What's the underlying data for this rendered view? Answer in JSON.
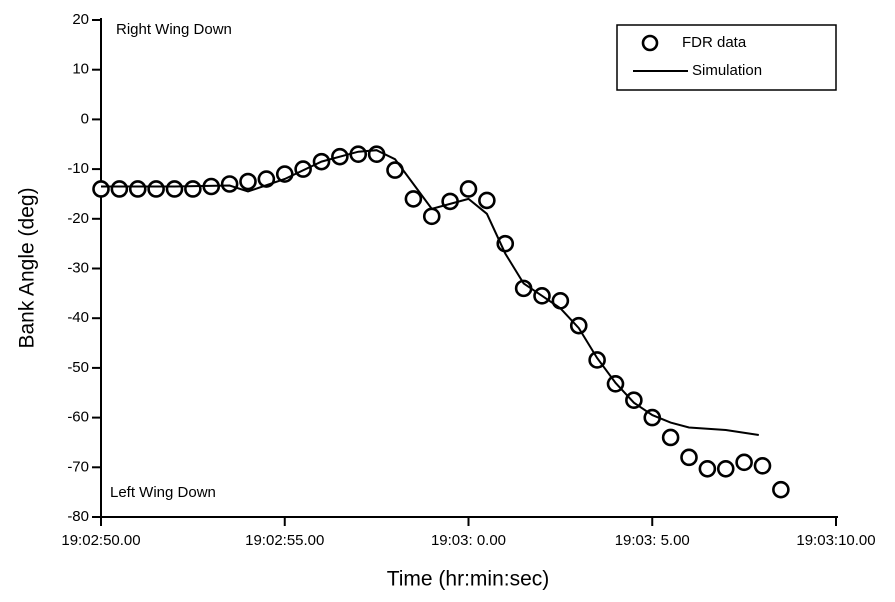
{
  "chart_data": {
    "type": "line",
    "xlabel": "Time (hr:min:sec)",
    "ylabel": "Bank Angle (deg)",
    "annotations": [
      "Right Wing Down",
      "Left Wing Down"
    ],
    "xlim": [
      0,
      20
    ],
    "xticks": [
      {
        "value": 0,
        "label": "19:02:50.00"
      },
      {
        "value": 5,
        "label": "19:02:55.00"
      },
      {
        "value": 10,
        "label": "19:03: 0.00"
      },
      {
        "value": 15,
        "label": "19:03: 5.00"
      },
      {
        "value": 20,
        "label": "19:03:10.00"
      }
    ],
    "ylim": [
      -80,
      20
    ],
    "yticks": [
      -80,
      -70,
      -60,
      -50,
      -40,
      -30,
      -20,
      -10,
      0,
      10,
      20
    ],
    "grid": false,
    "legend": "upper right",
    "series": [
      {
        "name": "FDR data",
        "type": "scatter",
        "color": "#000000",
        "x": [
          0,
          0.5,
          1,
          1.5,
          2,
          2.5,
          3,
          3.5,
          4,
          4.5,
          5,
          5.5,
          6,
          6.5,
          7,
          7.5,
          8,
          8.5,
          9,
          9.5,
          10,
          10.5,
          11,
          11.5,
          12,
          12.5,
          13,
          13.5,
          14,
          14.5,
          15,
          15.5,
          16,
          16.5,
          17,
          17.5,
          18,
          18.5
        ],
        "values": [
          -14,
          -14,
          -14,
          -14,
          -14,
          -14,
          -13.5,
          -13,
          -12.5,
          -12,
          -11,
          -10,
          -8.5,
          -7.5,
          -7,
          -7,
          -10.2,
          -16,
          -19.5,
          -16.5,
          -14,
          -16.3,
          -25,
          -34,
          -35.5,
          -36.5,
          -41.5,
          -48.4,
          -53.2,
          -56.5,
          -60,
          -64,
          -68,
          -70.3,
          -70.3,
          -69,
          -69.7,
          -74.5
        ]
      },
      {
        "name": "Simulation",
        "type": "line",
        "color": "#000000",
        "x": [
          0,
          2,
          3.5,
          4,
          5,
          6,
          7,
          7.5,
          8,
          8.5,
          9,
          9.5,
          10,
          10.5,
          11,
          11.5,
          12,
          12.5,
          13,
          13.5,
          14,
          14.5,
          15,
          15.5,
          16,
          17,
          17.9
        ],
        "values": [
          -13.5,
          -13.5,
          -13.3,
          -14.5,
          -12,
          -8.5,
          -6.5,
          -6.2,
          -8,
          -13,
          -18,
          -17,
          -16,
          -19,
          -27,
          -33,
          -35.5,
          -38,
          -42,
          -48,
          -53,
          -57,
          -59.5,
          -61,
          -62,
          -62.5,
          -63.5
        ]
      }
    ]
  }
}
